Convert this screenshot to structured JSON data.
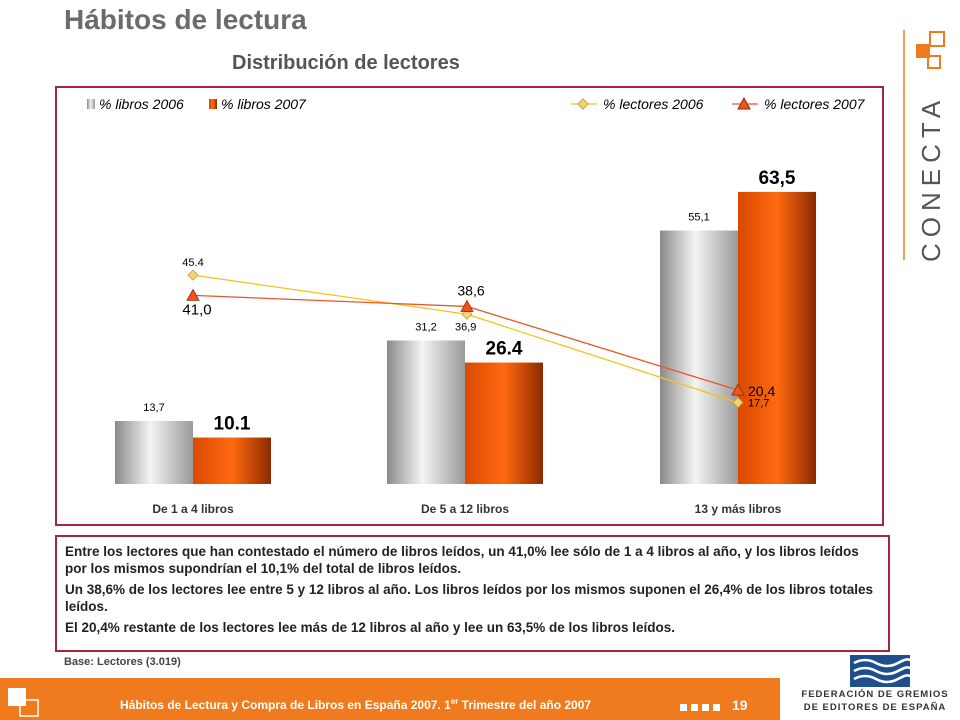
{
  "page": {
    "title": "Hábitos de lectura",
    "base_note": "Base:  Lectores (3.019)",
    "brand": "CONECTA"
  },
  "chart_data": {
    "type": "bar",
    "title": "Distribución de lectores",
    "categories": [
      "De 1 a 4 libros",
      "De 5 a 12 libros",
      "13 y más libros"
    ],
    "series": [
      {
        "name": "% libros 2006",
        "kind": "bar",
        "values": [
          13.7,
          31.2,
          55.1
        ],
        "labels": [
          "13,7",
          "31,2",
          "55,1"
        ],
        "color": "#b8b8b8"
      },
      {
        "name": "% libros 2007",
        "kind": "bar",
        "values": [
          10.1,
          26.4,
          63.5
        ],
        "labels": [
          "10.1",
          "26.4",
          "63,5"
        ],
        "color": "#e85a0c"
      },
      {
        "name": "% lectores 2006",
        "kind": "line",
        "values": [
          45.4,
          36.9,
          17.7
        ],
        "labels": [
          "45.4",
          "36,9",
          "17,7"
        ],
        "color": "#f0c419"
      },
      {
        "name": "% lectores 2007",
        "kind": "line",
        "values": [
          41.0,
          38.6,
          20.4
        ],
        "labels": [
          "41,0",
          "38,6",
          "20,4"
        ],
        "color": "#e8562a"
      }
    ],
    "legend": "top",
    "grid": false
  },
  "text": {
    "p1": "Entre los lectores que han contestado el número de libros leídos, un 41,0% lee sólo de 1 a 4 libros al año, y los libros leídos por los mismos supondrían el 10,1% del total de libros leídos.",
    "p2": "Un 38,6% de los lectores lee entre 5 y 12 libros al año. Los libros leídos por los mismos suponen el 26,4% de los libros totales leídos.",
    "p3": "El 20,4% restante de los lectores lee más de 12 libros al año y lee un 63,5% de los libros leídos."
  },
  "footer": {
    "text": "Hábitos de Lectura y Compra de Libros en España 2007. 1",
    "sup": "er",
    "text_end": " Trimestre del año 2007",
    "page_number": "19",
    "federation_line1": "FEDERACIÓN DE GREMIOS",
    "federation_line2": "DE EDITORES DE ESPAÑA"
  }
}
